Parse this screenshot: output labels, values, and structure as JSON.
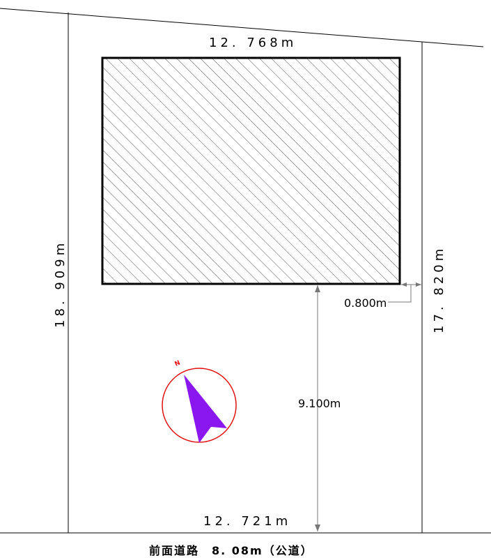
{
  "dimensions": {
    "top_width": "12. 768m",
    "bottom_width": "12. 721m",
    "left_depth": "18. 909m",
    "right_depth": "17. 820m",
    "side_setback": "0.800m",
    "front_setback": "9.100m"
  },
  "road": {
    "label": "前面道路　8. 08m（公道）"
  },
  "compass": {
    "north_label": "N",
    "arrow_color": "#8a16f0",
    "ring_color": "#e01010"
  },
  "colors": {
    "line": "#000000",
    "hatch": "#555555"
  }
}
